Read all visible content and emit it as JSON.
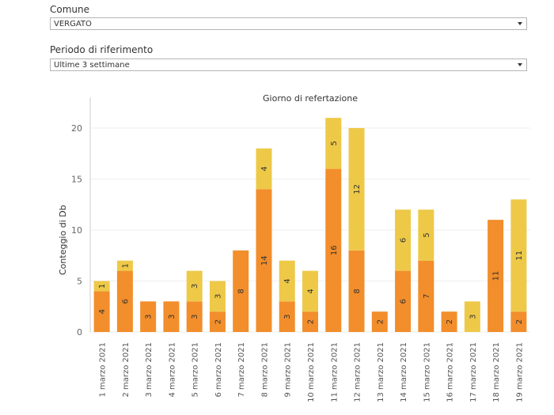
{
  "filters": {
    "comune": {
      "label": "Comune",
      "value": "VERGATO"
    },
    "periodo": {
      "label": "Periodo di riferimento",
      "value": "Ultime 3 settimane"
    }
  },
  "colors": {
    "series_bottom": "#f28e2b",
    "series_top": "#eec948",
    "grid": "#efefef",
    "axis": "#cccccc"
  },
  "chart_data": {
    "type": "bar",
    "stacked": true,
    "orientation": "vertical",
    "title": "Giorno di refertazione",
    "xlabel": "",
    "ylabel": "Conteggio di Db",
    "ylim": [
      0,
      23
    ],
    "yticks": [
      0,
      5,
      10,
      15,
      20
    ],
    "grid": true,
    "legend": "none",
    "categories": [
      "1 marzo 2021",
      "2 marzo 2021",
      "3 marzo 2021",
      "4 marzo 2021",
      "5 marzo 2021",
      "6 marzo 2021",
      "7 marzo 2021",
      "8 marzo 2021",
      "9 marzo 2021",
      "10 marzo 2021",
      "11 marzo 2021",
      "12 marzo 2021",
      "13 marzo 2021",
      "14 marzo 2021",
      "15 marzo 2021",
      "16 marzo 2021",
      "17 marzo 2021",
      "18 marzo 2021",
      "19 marzo 2021"
    ],
    "series": [
      {
        "values": [
          4,
          6,
          3,
          3,
          3,
          2,
          8,
          14,
          3,
          2,
          16,
          8,
          2,
          6,
          7,
          2,
          0,
          11,
          2
        ]
      },
      {
        "values": [
          1,
          1,
          0,
          0,
          3,
          3,
          0,
          4,
          4,
          4,
          5,
          12,
          0,
          6,
          5,
          0,
          3,
          0,
          11
        ]
      }
    ]
  }
}
